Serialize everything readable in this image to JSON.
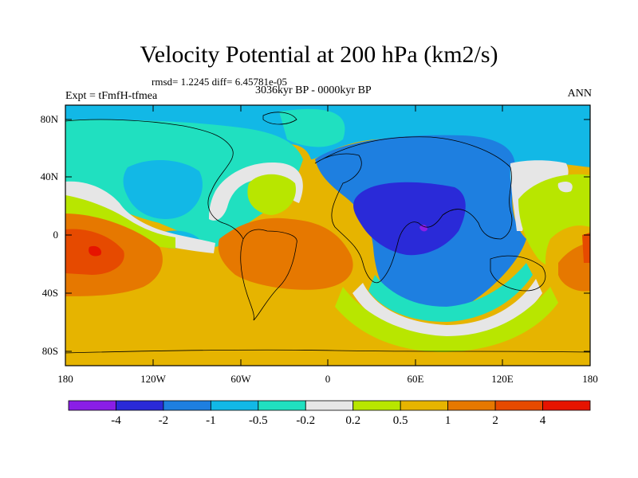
{
  "title": "Velocity Potential at 200 hPa (km2/s)",
  "stats": {
    "rmsd_label": "rmsd= 1.2245",
    "diff_label": "diff= 6.45781e-05"
  },
  "experiment": "Expt = tFmfH-tfmea",
  "period": "3036kyr BP - 0000kyr BP",
  "season": "ANN",
  "lat_labels": [
    "80N",
    "40N",
    "0",
    "40S",
    "80S"
  ],
  "lon_labels": [
    "180",
    "120W",
    "60W",
    "0",
    "60E",
    "120E",
    "180"
  ],
  "colorbar": {
    "labels": [
      "-4",
      "-2",
      "-1",
      "-0.5",
      "-0.2",
      "0.2",
      "0.5",
      "1",
      "2",
      "4"
    ],
    "colors": [
      "#8a1ee6",
      "#2a2ad8",
      "#1e7fe0",
      "#12b8e6",
      "#20e0c0",
      "#e6e6e6",
      "#b8e600",
      "#e6b400",
      "#e67800",
      "#e64a00",
      "#e61400"
    ]
  },
  "colors": {
    "red": "#e63200",
    "orange": "#e67800",
    "gold": "#e6b400",
    "yellowgreen": "#b8e600",
    "white": "#e6e6e6",
    "teal": "#20e0c0",
    "cyan": "#12b8e6",
    "blue": "#1e7fe0",
    "darkblue": "#2a2ad8",
    "purple": "#8a1ee6"
  }
}
